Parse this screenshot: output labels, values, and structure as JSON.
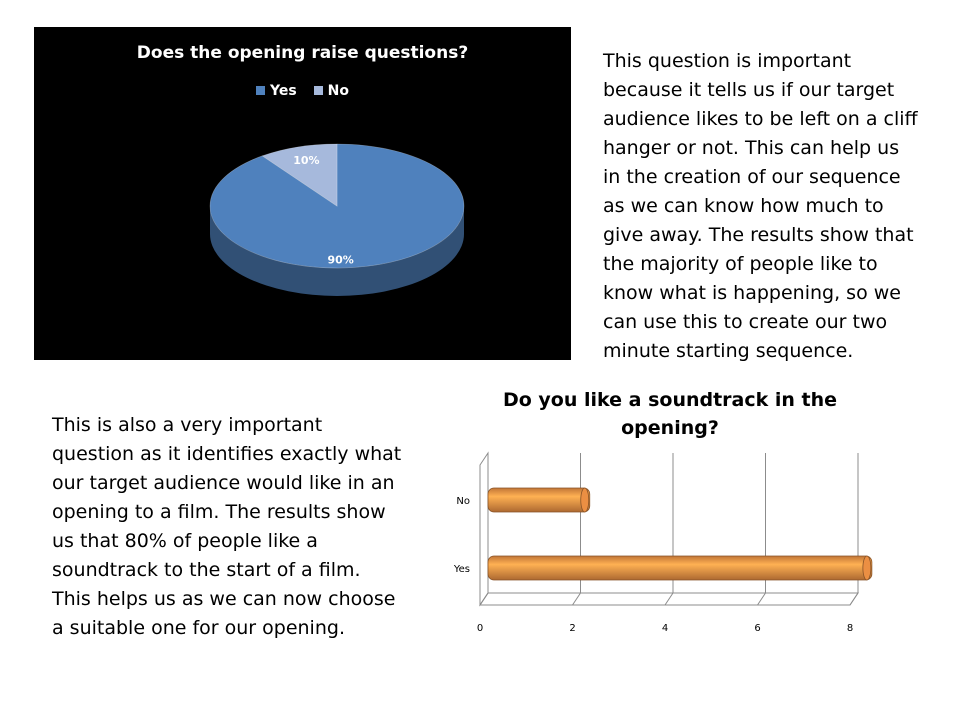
{
  "chart_data": [
    {
      "type": "pie",
      "title": "Does the opening raise questions?",
      "categories": [
        "Yes",
        "No"
      ],
      "values": [
        90,
        10
      ],
      "data_labels": [
        "90%",
        "10%"
      ],
      "legend": "top",
      "colors": [
        "#4f81bd",
        "#a6b9dc"
      ],
      "background": "#000000"
    },
    {
      "type": "bar",
      "orientation": "horizontal",
      "title": "Do you like a soundtrack in the\nopening?",
      "categories": [
        "No",
        "Yes"
      ],
      "values": [
        2.2,
        8.3
      ],
      "xlim": [
        0,
        8
      ],
      "xticks": [
        "0",
        "2",
        "4",
        "6",
        "8"
      ],
      "grid": true,
      "color": "#f79646"
    }
  ],
  "text": {
    "top_paragraph": "This question is important\nbecause it tells us if our target\naudience likes to be left on a cliff\nhanger or not. This can help us\nin the creation of our sequence\nas we can know how much to\ngive away. The results show that\nthe majority of people like to\nknow what is happening, so we\ncan use this to create our two\nminute starting sequence.",
    "bottom_paragraph": "This is also a very important\nquestion as it identifies exactly what\nour target audience would like in an\nopening to a film. The results show\nus that 80% of people like a\nsoundtrack to the start of a film.\nThis helps us as we can now choose\na suitable one for our opening."
  }
}
